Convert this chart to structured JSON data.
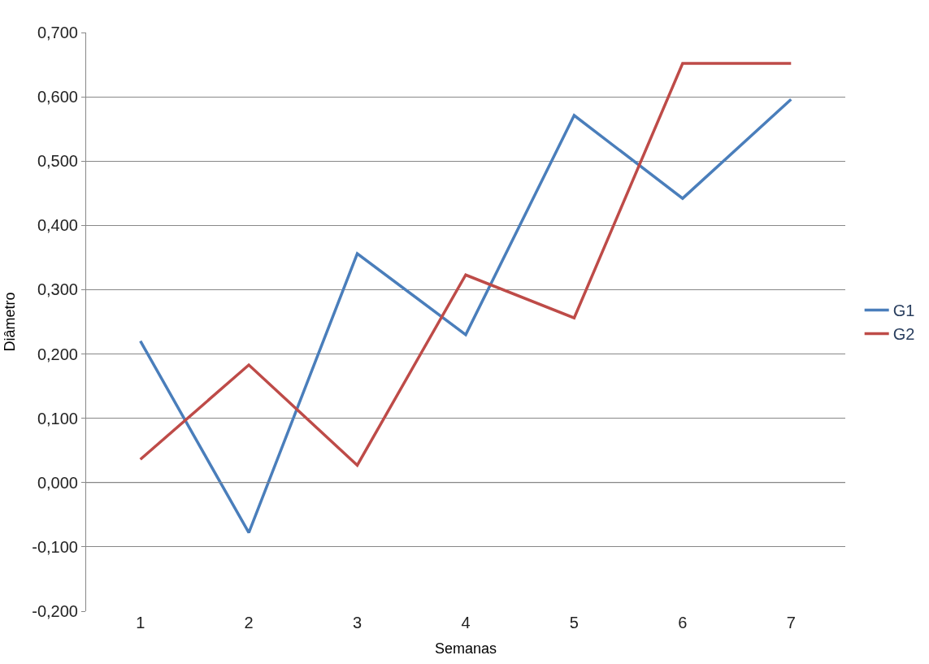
{
  "chart_data": {
    "type": "line",
    "xlabel": "Semanas",
    "ylabel": "Diâmetro",
    "categories": [
      "1",
      "2",
      "3",
      "4",
      "5",
      "6",
      "7"
    ],
    "series": [
      {
        "name": "G1",
        "color": "#4a7ebb",
        "values": [
          0.22,
          -0.078,
          0.356,
          0.23,
          0.571,
          0.442,
          0.596
        ]
      },
      {
        "name": "G2",
        "color": "#be4b48",
        "values": [
          0.036,
          0.183,
          0.027,
          0.323,
          0.256,
          0.652,
          0.652
        ]
      }
    ],
    "ylim": [
      -0.2,
      0.7
    ],
    "yticks": [
      {
        "value": -0.2,
        "label": "-0,200"
      },
      {
        "value": -0.1,
        "label": "-0,100"
      },
      {
        "value": 0,
        "label": "0,000"
      },
      {
        "value": 0.1,
        "label": "0,100"
      },
      {
        "value": 0.2,
        "label": "0,200"
      },
      {
        "value": 0.3,
        "label": "0,300"
      },
      {
        "value": 0.4,
        "label": "0,400"
      },
      {
        "value": 0.5,
        "label": "0,500"
      },
      {
        "value": 0.6,
        "label": "0,600"
      },
      {
        "value": 0.7,
        "label": "0,700"
      }
    ],
    "grid": "y",
    "legend": "right",
    "marker": "none",
    "line_style": "solid"
  }
}
